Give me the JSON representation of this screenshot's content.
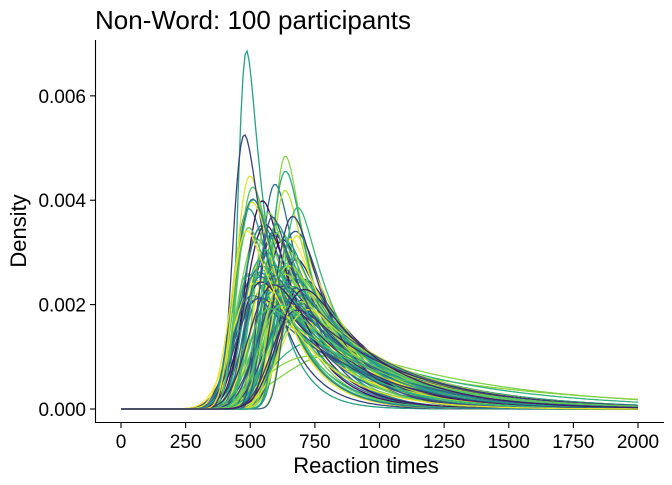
{
  "chart_data": {
    "type": "line",
    "subtype": "density-curves",
    "title": "Non-Word: 100 participants",
    "xlabel": "Reaction times",
    "ylabel": "Density",
    "xlim": [
      0,
      2000
    ],
    "ylim": [
      0,
      0.0073
    ],
    "x_ticks": [
      0,
      250,
      500,
      750,
      1000,
      1250,
      1500,
      1750,
      2000
    ],
    "x_tick_labels": [
      "0",
      "250",
      "500",
      "750",
      "1000",
      "1250",
      "1500",
      "1750",
      "2000"
    ],
    "y_ticks": [
      0,
      0.002,
      0.004,
      0.006
    ],
    "y_tick_labels": [
      "0.000",
      "0.002",
      "0.004",
      "0.006"
    ],
    "grid": false,
    "legend": "none",
    "palette": [
      "#440154",
      "#31688e",
      "#21918c",
      "#35b779",
      "#90d743",
      "#fde725"
    ],
    "n_series": 100
  }
}
